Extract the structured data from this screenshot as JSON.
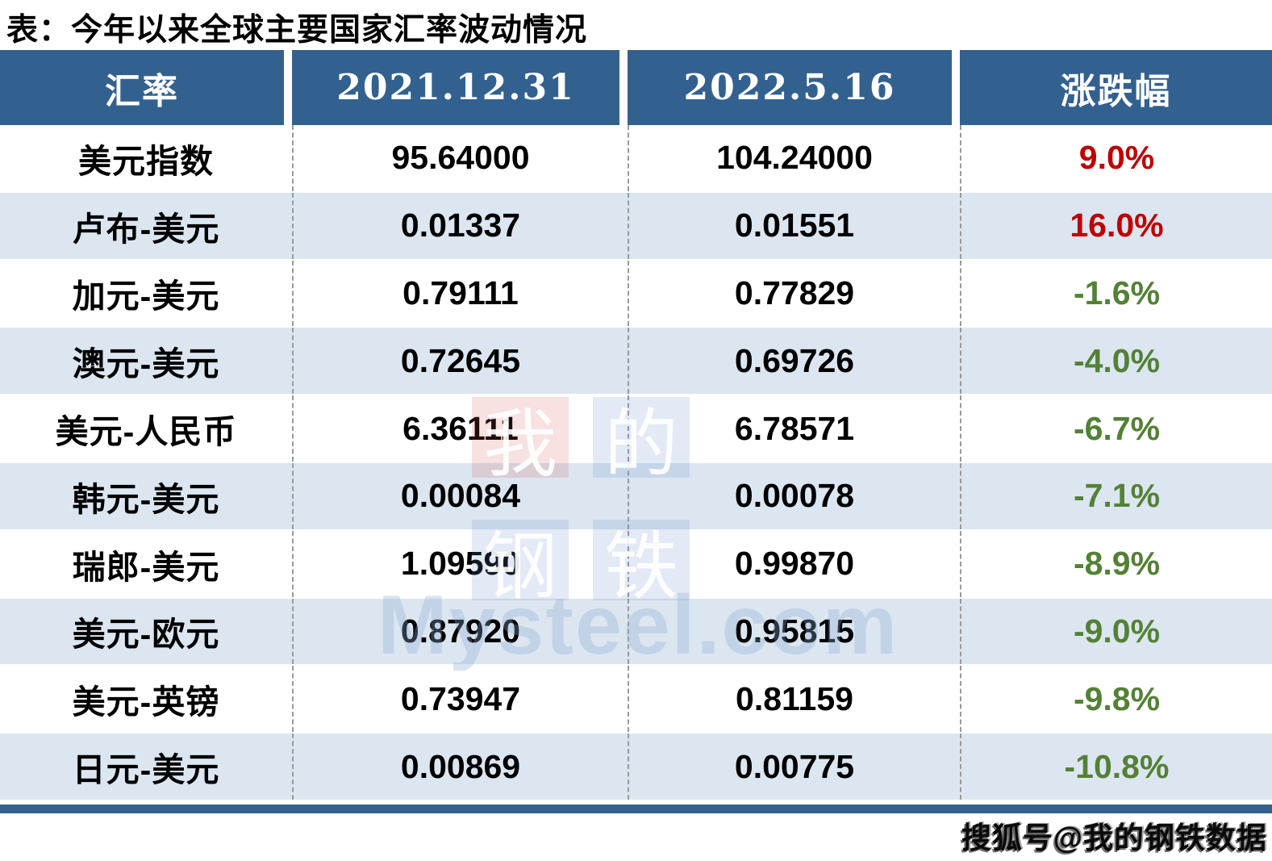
{
  "title": "表：今年以来全球主要国家汇率波动情况",
  "chart_data": {
    "type": "table",
    "title": "表：今年以来全球主要国家汇率波动情况",
    "columns": [
      "汇率",
      "2021.12.31",
      "2022.5.16",
      "涨跌幅"
    ],
    "rows": [
      {
        "pair": "美元指数",
        "dec31": "95.64000",
        "may16": "104.24000",
        "change": "9.0%",
        "direction": "up"
      },
      {
        "pair": "卢布-美元",
        "dec31": "0.01337",
        "may16": "0.01551",
        "change": "16.0%",
        "direction": "up"
      },
      {
        "pair": "加元-美元",
        "dec31": "0.79111",
        "may16": "0.77829",
        "change": "-1.6%",
        "direction": "down"
      },
      {
        "pair": "澳元-美元",
        "dec31": "0.72645",
        "may16": "0.69726",
        "change": "-4.0%",
        "direction": "down"
      },
      {
        "pair": "美元-人民币",
        "dec31": "6.36111",
        "may16": "6.78571",
        "change": "-6.7%",
        "direction": "down"
      },
      {
        "pair": "韩元-美元",
        "dec31": "0.00084",
        "may16": "0.00078",
        "change": "-7.1%",
        "direction": "down"
      },
      {
        "pair": "瑞郎-美元",
        "dec31": "1.09590",
        "may16": "0.99870",
        "change": "-8.9%",
        "direction": "down"
      },
      {
        "pair": "美元-欧元",
        "dec31": "0.87920",
        "may16": "0.95815",
        "change": "-9.0%",
        "direction": "down"
      },
      {
        "pair": "美元-英镑",
        "dec31": "0.73947",
        "may16": "0.81159",
        "change": "-9.8%",
        "direction": "down"
      },
      {
        "pair": "日元-美元",
        "dec31": "0.00869",
        "may16": "0.00775",
        "change": "-10.8%",
        "direction": "down"
      }
    ]
  },
  "watermark": {
    "tiles": [
      "我",
      "的",
      "钢",
      "铁"
    ],
    "domain_text": "Mysteel.com"
  },
  "attribution": "搜狐号@我的钢铁数据",
  "colors": {
    "header_bg": "#33618f",
    "row_alt_bg": "#dce6f1",
    "up_red": "#c00000",
    "down_green": "#538135",
    "bottom_bar": "#33618f"
  }
}
